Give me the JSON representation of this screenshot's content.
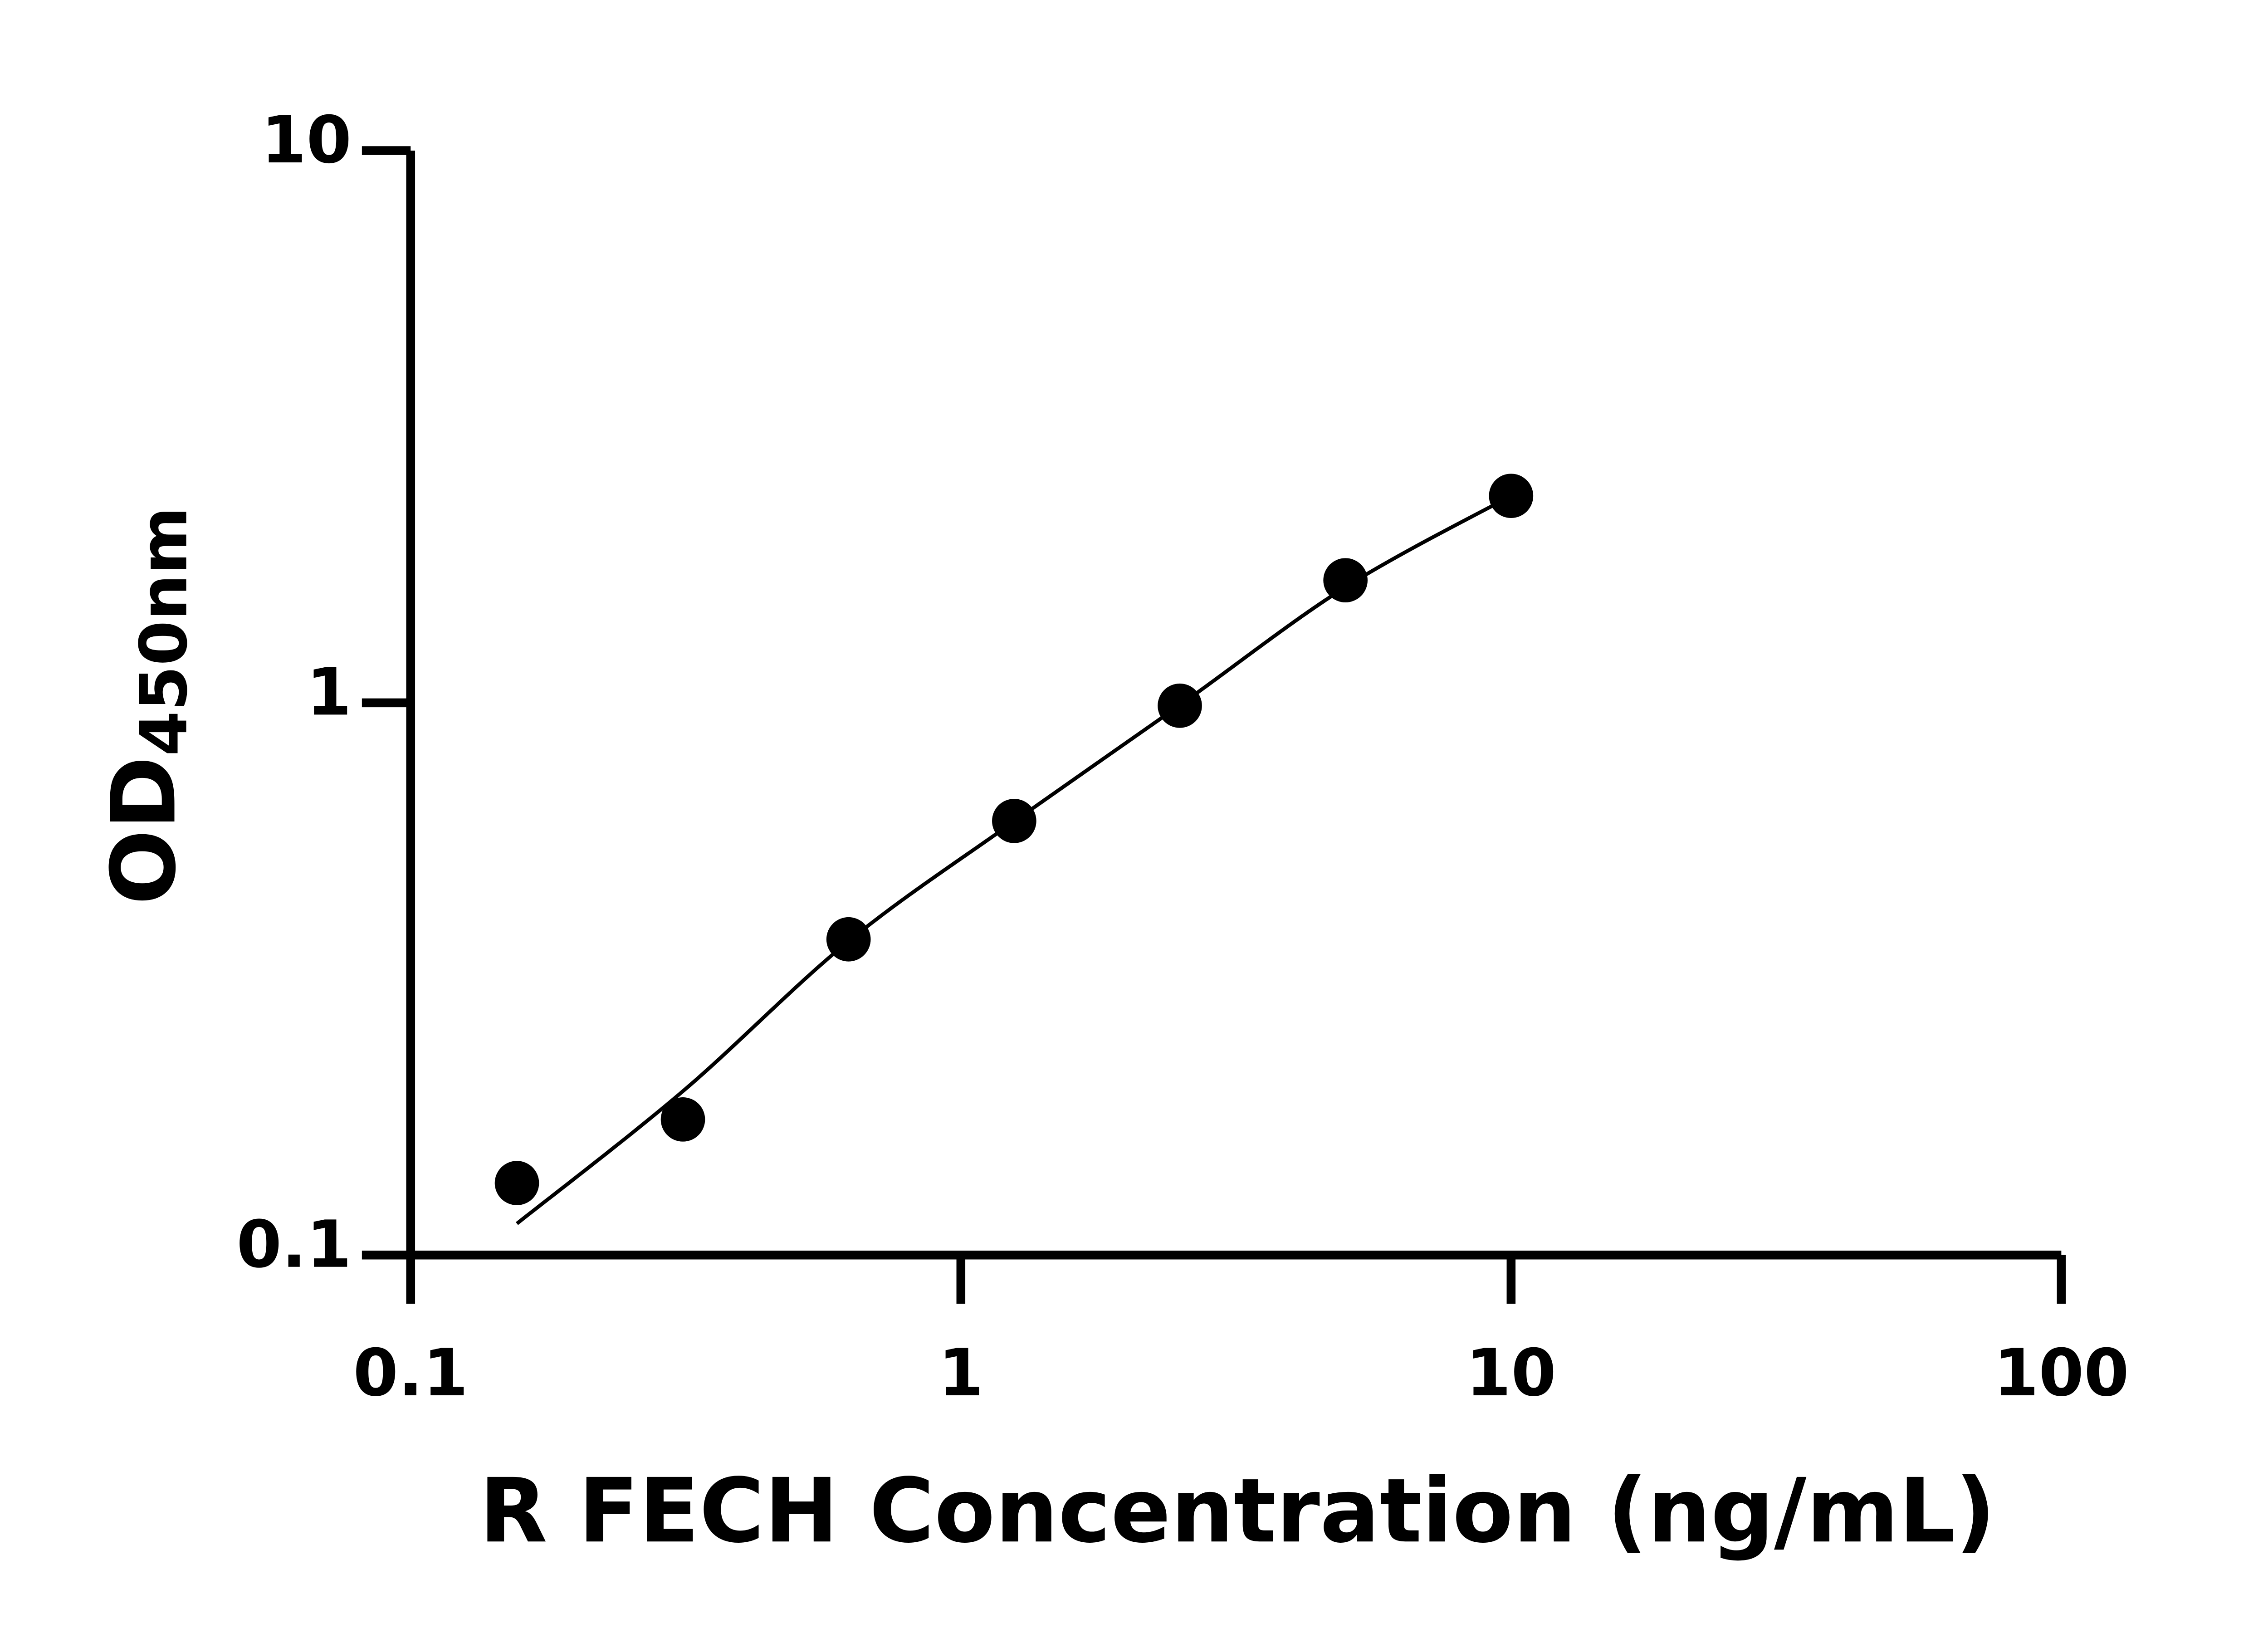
{
  "chart_data": {
    "type": "scatter",
    "title": "",
    "xlabel": "R FECH Concentration (ng/mL)",
    "ylabel_main": "OD",
    "ylabel_sub": "450nm",
    "x_scale": "log",
    "y_scale": "log",
    "xlim": [
      0.1,
      100
    ],
    "ylim": [
      0.1,
      10
    ],
    "x_ticks": [
      0.1,
      1,
      10,
      100
    ],
    "x_tick_labels": [
      "0.1",
      "1",
      "10",
      "100"
    ],
    "y_ticks": [
      0.1,
      1,
      10
    ],
    "y_tick_labels": [
      "0.1",
      "1",
      "10"
    ],
    "grid": false,
    "legend": "none",
    "points": [
      {
        "x": 0.156,
        "y": 0.135
      },
      {
        "x": 0.3125,
        "y": 0.176
      },
      {
        "x": 0.625,
        "y": 0.373
      },
      {
        "x": 1.25,
        "y": 0.611
      },
      {
        "x": 2.5,
        "y": 0.988
      },
      {
        "x": 5,
        "y": 1.667
      },
      {
        "x": 10,
        "y": 2.37
      }
    ],
    "fit_curve": [
      {
        "x": 0.156,
        "y": 0.114
      },
      {
        "x": 0.3125,
        "y": 0.198
      },
      {
        "x": 0.625,
        "y": 0.37
      },
      {
        "x": 1.25,
        "y": 0.61
      },
      {
        "x": 2.5,
        "y": 0.99
      },
      {
        "x": 5,
        "y": 1.62
      },
      {
        "x": 10,
        "y": 2.37
      }
    ],
    "colors": {
      "marker": "#000000",
      "line": "#000000",
      "axis": "#000000"
    }
  }
}
